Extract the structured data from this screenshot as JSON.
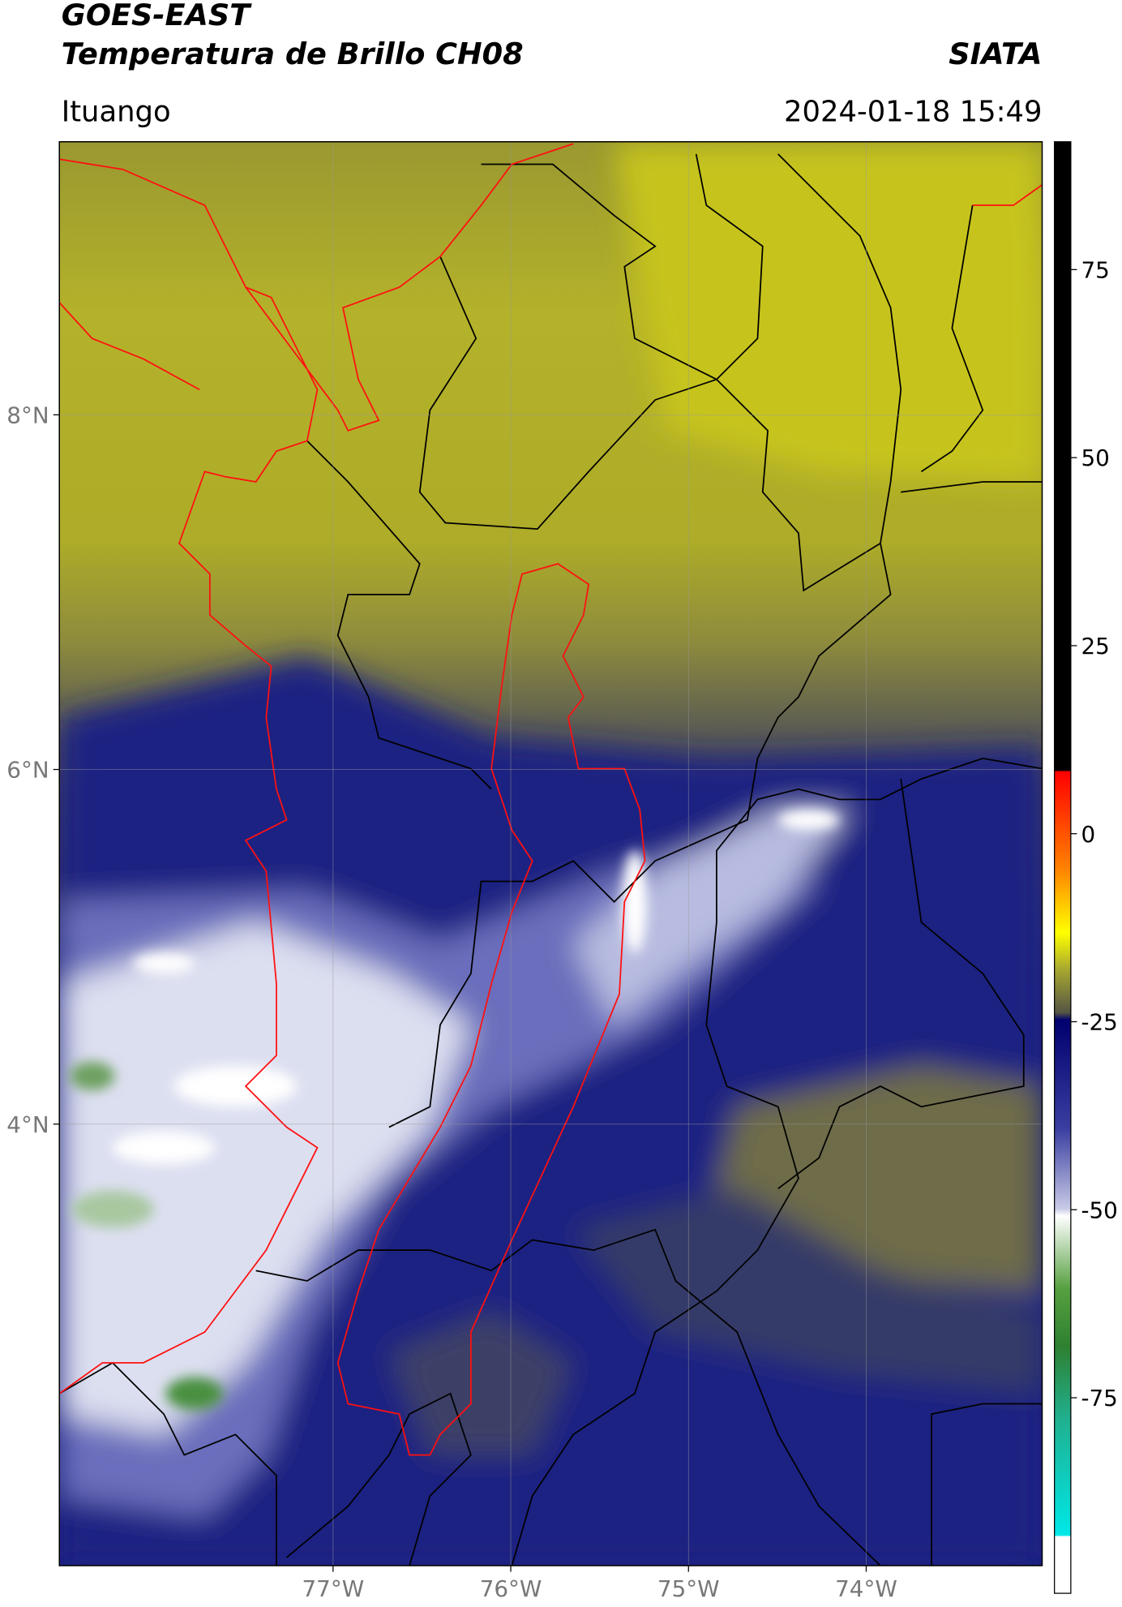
{
  "header": {
    "title": "GOES-EAST",
    "subtitle": "Temperatura de Brillo CH08",
    "source": "SIATA",
    "location": "Ituango",
    "timestamp": "2024-01-18 15:49"
  },
  "map": {
    "xlim": [
      -78.54,
      -73.01
    ],
    "ylim": [
      1.51,
      9.54
    ],
    "xticks": [
      {
        "value": -77,
        "label": "77°W"
      },
      {
        "value": -76,
        "label": "76°W"
      },
      {
        "value": -75,
        "label": "75°W"
      },
      {
        "value": -74,
        "label": "74°W"
      }
    ],
    "yticks": [
      {
        "value": 8,
        "label": "8°N"
      },
      {
        "value": 6,
        "label": "6°N"
      },
      {
        "value": 4,
        "label": "4°N"
      }
    ],
    "grid": true
  },
  "colorbar": {
    "lim": [
      -101,
      92
    ],
    "ticks": [
      75,
      50,
      25,
      0,
      -25,
      -50,
      -75
    ]
  }
}
